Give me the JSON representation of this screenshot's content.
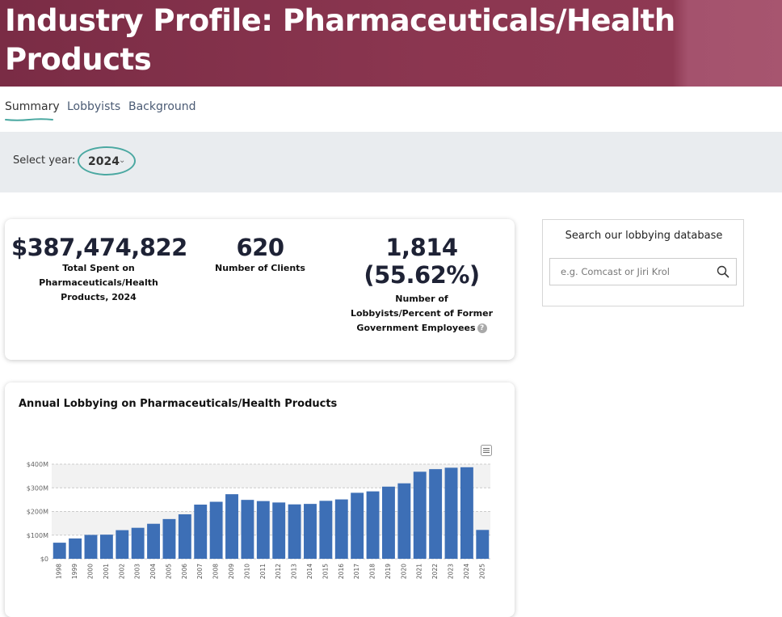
{
  "header": {
    "title": "Industry Profile: Pharmaceuticals/Health Products"
  },
  "tabs": [
    {
      "label": "Summary",
      "active": true
    },
    {
      "label": "Lobbyists",
      "active": false
    },
    {
      "label": "Background",
      "active": false
    }
  ],
  "year_filter": {
    "label": "Select year:",
    "selected": "2024"
  },
  "stats": {
    "total_spent": {
      "value": "$387,474,822",
      "label": "Total Spent on Pharmaceuticals/Health Products, 2024"
    },
    "clients": {
      "value": "620",
      "label": "Number of Clients"
    },
    "lobbyists": {
      "value": "1,814 (55.62%)",
      "label": "Number of Lobbyists/Percent of Former Government Employees"
    }
  },
  "search": {
    "title": "Search our lobbying database",
    "placeholder": "e.g. Comcast or Jiri Krol",
    "value": ""
  },
  "icons": {
    "search": "search-icon",
    "help": "help-icon",
    "chart_menu": "hamburger-menu-icon",
    "caret": "chevron-down-icon"
  },
  "colors": {
    "banner": "#8b3650",
    "accent": "#4aa8a1",
    "bar": "#3d6fb6"
  },
  "chart_data": {
    "type": "bar",
    "title": "Annual Lobbying on Pharmaceuticals/Health Products",
    "categories": [
      "1998",
      "1999",
      "2000",
      "2001",
      "2002",
      "2003",
      "2004",
      "2005",
      "2006",
      "2007",
      "2008",
      "2009",
      "2010",
      "2011",
      "2012",
      "2013",
      "2014",
      "2015",
      "2016",
      "2017",
      "2018",
      "2019",
      "2020",
      "2021",
      "2022",
      "2023",
      "2024",
      "2025"
    ],
    "values": [
      68,
      86,
      101,
      102,
      121,
      131,
      148,
      168,
      188,
      229,
      241,
      273,
      249,
      244,
      238,
      230,
      232,
      245,
      251,
      279,
      285,
      305,
      319,
      368,
      379,
      385,
      387,
      122
    ],
    "ytick_labels": [
      "$0",
      "$100M",
      "$200M",
      "$300M",
      "$400M"
    ],
    "ytick_values": [
      0,
      100,
      200,
      300,
      400
    ],
    "ylim": [
      0,
      400
    ],
    "units": "millions USD",
    "grid": true,
    "legend": "none"
  }
}
